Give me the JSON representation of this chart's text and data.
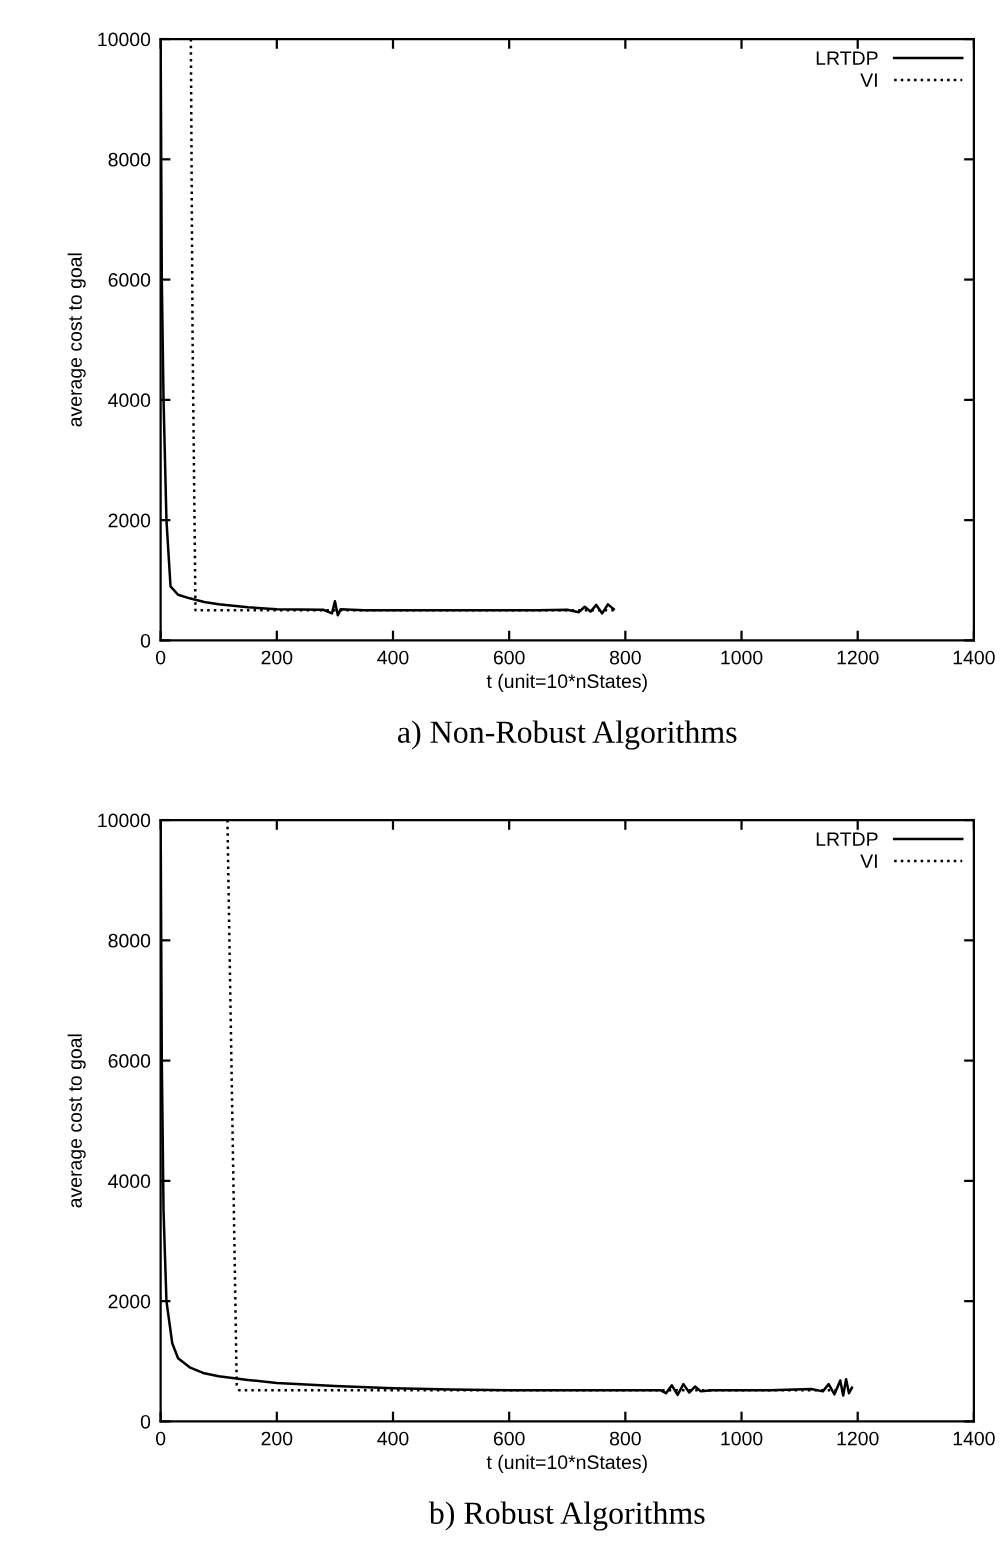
{
  "chart_data": [
    {
      "type": "line",
      "title": "a) Non-Robust Algorithms",
      "xlabel": "t (unit=10*nStates)",
      "ylabel": "average cost to goal",
      "xlim": [
        0,
        1400
      ],
      "ylim": [
        0,
        10000
      ],
      "xticks": [
        0,
        200,
        400,
        600,
        800,
        1000,
        1200,
        1400
      ],
      "yticks": [
        0,
        2000,
        4000,
        6000,
        8000,
        10000
      ],
      "grid": false,
      "legend": "top right",
      "series": [
        {
          "name": "LRTDP",
          "color": "#000000",
          "line_style": "solid",
          "x": [
            0,
            2,
            5,
            10,
            17,
            30,
            50,
            75,
            100,
            150,
            200,
            280,
            295,
            300,
            305,
            310,
            350,
            450,
            550,
            650,
            700,
            720,
            730,
            740,
            750,
            760,
            770,
            780
          ],
          "values": [
            10000,
            6000,
            4000,
            2000,
            900,
            760,
            700,
            640,
            600,
            550,
            520,
            510,
            450,
            650,
            420,
            520,
            500,
            500,
            500,
            500,
            510,
            470,
            560,
            480,
            590,
            450,
            600,
            520
          ]
        },
        {
          "name": "VI",
          "color": "#000000",
          "line_style": "dotted",
          "x": [
            52,
            55,
            60,
            100,
            200,
            400,
            600,
            780
          ],
          "values": [
            10000,
            5000,
            500,
            500,
            500,
            500,
            500,
            500
          ]
        }
      ]
    },
    {
      "type": "line",
      "title": "b) Robust Algorithms",
      "xlabel": "t (unit=10*nStates)",
      "ylabel": "average cost to goal",
      "xlim": [
        0,
        1400
      ],
      "ylim": [
        0,
        10000
      ],
      "xticks": [
        0,
        200,
        400,
        600,
        800,
        1000,
        1200,
        1400
      ],
      "yticks": [
        0,
        2000,
        4000,
        6000,
        8000,
        10000
      ],
      "grid": false,
      "legend": "top right",
      "series": [
        {
          "name": "LRTDP",
          "color": "#000000",
          "line_style": "solid",
          "x": [
            0,
            2,
            5,
            10,
            20,
            30,
            50,
            75,
            100,
            150,
            200,
            300,
            400,
            500,
            600,
            700,
            800,
            860,
            870,
            880,
            890,
            900,
            910,
            920,
            930,
            950,
            1050,
            1120,
            1140,
            1150,
            1160,
            1170,
            1175,
            1180,
            1185,
            1190
          ],
          "values": [
            10000,
            6000,
            3500,
            2000,
            1300,
            1050,
            900,
            800,
            750,
            690,
            640,
            590,
            550,
            530,
            520,
            520,
            520,
            520,
            470,
            600,
            440,
            620,
            480,
            580,
            500,
            520,
            520,
            540,
            500,
            620,
            450,
            680,
            430,
            700,
            470,
            560
          ]
        },
        {
          "name": "VI",
          "color": "#000000",
          "line_style": "dotted",
          "x": [
            115,
            131,
            135,
            200,
            400,
            600,
            800,
            1000,
            1190
          ],
          "values": [
            10000,
            600,
            520,
            520,
            520,
            520,
            520,
            520,
            520
          ]
        }
      ]
    }
  ]
}
